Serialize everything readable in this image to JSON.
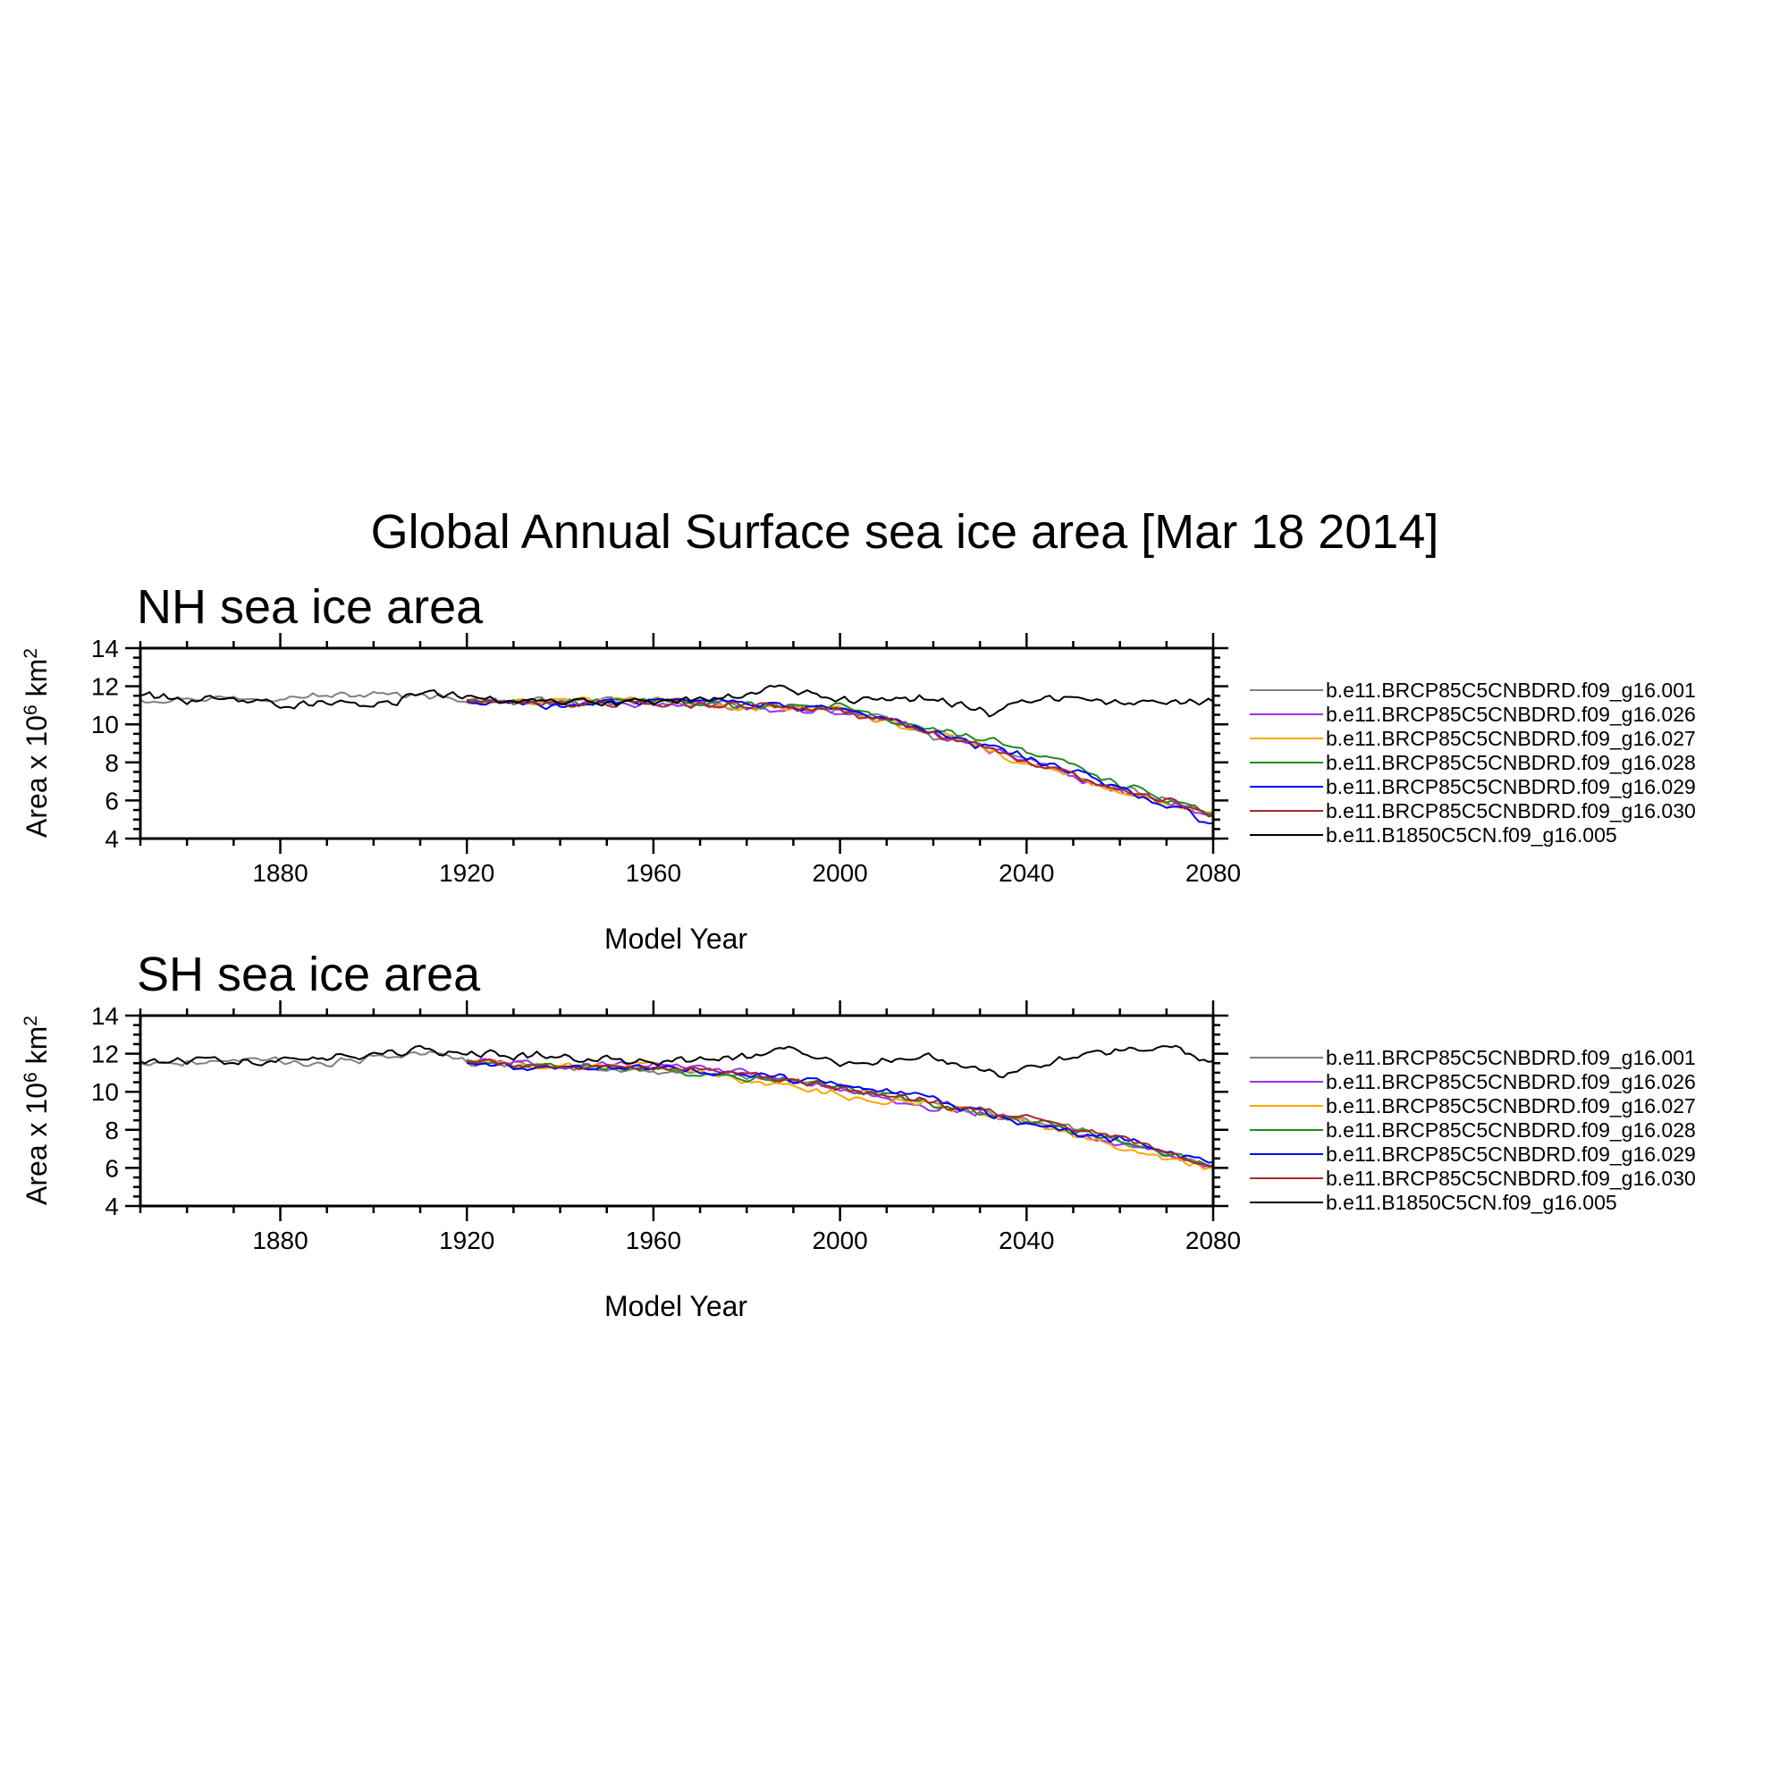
{
  "figure": {
    "title": "Global Annual Surface sea ice area [Mar 18 2014]"
  },
  "chart_data": [
    {
      "type": "line",
      "title": "NH sea ice area",
      "xlabel": "Model Year",
      "ylabel": "Area x 10^6 km^2",
      "ylabel_parts": {
        "base": "Area x 10",
        "exp1": "6",
        "mid": " km",
        "exp2": "2"
      },
      "xlim": [
        1850,
        2080
      ],
      "ylim": [
        4,
        14
      ],
      "xticks": [
        1880,
        1920,
        1960,
        2000,
        2040,
        2080
      ],
      "yticks": [
        4,
        6,
        8,
        10,
        12,
        14
      ],
      "grid": false,
      "legend_position": "right",
      "series": [
        {
          "name": "b.e11.BRCP85C5CNBDRD.f09_g16.001",
          "color": "#808080",
          "x": [
            1850,
            1870,
            1890,
            1910,
            1920,
            1940,
            1960,
            1980,
            2000,
            2010,
            2020,
            2030,
            2040,
            2050,
            2060,
            2070,
            2080
          ],
          "y": [
            11.3,
            11.4,
            11.5,
            11.6,
            11.3,
            11.2,
            11.2,
            11.0,
            10.8,
            10.2,
            9.4,
            8.9,
            8.2,
            7.3,
            6.6,
            6.0,
            5.3
          ]
        },
        {
          "name": "b.e11.BRCP85C5CNBDRD.f09_g16.026",
          "color": "#9b30ff",
          "x": [
            1920,
            1940,
            1960,
            1980,
            2000,
            2010,
            2020,
            2030,
            2040,
            2050,
            2060,
            2070,
            2080
          ],
          "y": [
            11.2,
            11.1,
            11.1,
            10.9,
            10.7,
            10.2,
            9.5,
            8.8,
            8.0,
            7.2,
            6.5,
            5.9,
            5.2
          ]
        },
        {
          "name": "b.e11.BRCP85C5CNBDRD.f09_g16.027",
          "color": "#ffa500",
          "x": [
            1920,
            1940,
            1960,
            1980,
            2000,
            2010,
            2020,
            2030,
            2040,
            2050,
            2060,
            2070,
            2080
          ],
          "y": [
            11.1,
            11.2,
            11.3,
            10.9,
            10.8,
            10.1,
            9.6,
            8.9,
            7.9,
            7.3,
            6.4,
            5.8,
            5.4
          ]
        },
        {
          "name": "b.e11.BRCP85C5CNBDRD.f09_g16.028",
          "color": "#228b22",
          "x": [
            1920,
            1940,
            1960,
            1980,
            2000,
            2010,
            2020,
            2030,
            2040,
            2050,
            2060,
            2070,
            2080
          ],
          "y": [
            11.3,
            11.1,
            11.2,
            11.0,
            10.9,
            10.3,
            9.7,
            9.3,
            8.6,
            7.8,
            6.8,
            6.1,
            5.3
          ]
        },
        {
          "name": "b.e11.BRCP85C5CNBDRD.f09_g16.029",
          "color": "#0000ff",
          "x": [
            1920,
            1940,
            1960,
            1980,
            2000,
            2010,
            2020,
            2030,
            2040,
            2050,
            2060,
            2070,
            2080
          ],
          "y": [
            11.2,
            11.0,
            11.2,
            11.1,
            10.8,
            10.3,
            9.6,
            8.9,
            8.3,
            7.5,
            6.6,
            5.8,
            4.8
          ]
        },
        {
          "name": "b.e11.BRCP85C5CNBDRD.f09_g16.030",
          "color": "#a52a2a",
          "x": [
            1920,
            1940,
            1960,
            1980,
            2000,
            2010,
            2020,
            2030,
            2040,
            2050,
            2060,
            2070,
            2080
          ],
          "y": [
            11.3,
            11.1,
            11.1,
            11.0,
            10.7,
            10.2,
            9.5,
            8.8,
            8.1,
            7.3,
            6.6,
            6.0,
            5.2
          ]
        },
        {
          "name": "b.e11.B1850C5CN.f09_g16.005",
          "color": "#000000",
          "x": [
            1850,
            1860,
            1870,
            1880,
            1890,
            1900,
            1910,
            1920,
            1940,
            1960,
            1980,
            1987,
            2000,
            2020,
            2033,
            2040,
            2060,
            2080
          ],
          "y": [
            11.5,
            11.2,
            11.4,
            11.0,
            11.2,
            10.8,
            11.6,
            11.4,
            11.2,
            11.1,
            11.5,
            12.0,
            11.2,
            11.3,
            10.6,
            11.3,
            11.2,
            11.2
          ]
        }
      ]
    },
    {
      "type": "line",
      "title": "SH sea ice area",
      "xlabel": "Model Year",
      "ylabel": "Area x 10^6 km^2",
      "ylabel_parts": {
        "base": "Area x 10",
        "exp1": "6",
        "mid": " km",
        "exp2": "2"
      },
      "xlim": [
        1850,
        2080
      ],
      "ylim": [
        4,
        14
      ],
      "xticks": [
        1880,
        1920,
        1960,
        2000,
        2040,
        2080
      ],
      "yticks": [
        4,
        6,
        8,
        10,
        12,
        14
      ],
      "grid": false,
      "legend_position": "right",
      "series": [
        {
          "name": "b.e11.BRCP85C5CNBDRD.f09_g16.001",
          "color": "#808080",
          "x": [
            1850,
            1870,
            1890,
            1910,
            1920,
            1940,
            1960,
            1980,
            2000,
            2020,
            2040,
            2060,
            2080
          ],
          "y": [
            11.5,
            11.7,
            11.5,
            12.0,
            11.6,
            11.3,
            11.1,
            10.8,
            10.2,
            9.4,
            8.6,
            7.4,
            6.0
          ]
        },
        {
          "name": "b.e11.BRCP85C5CNBDRD.f09_g16.026",
          "color": "#9b30ff",
          "x": [
            1920,
            1940,
            1960,
            1980,
            2000,
            2020,
            2040,
            2060,
            2080
          ],
          "y": [
            11.7,
            11.4,
            11.5,
            11.0,
            10.1,
            9.2,
            8.5,
            7.3,
            6.1
          ]
        },
        {
          "name": "b.e11.BRCP85C5CNBDRD.f09_g16.027",
          "color": "#ffa500",
          "x": [
            1920,
            1940,
            1960,
            1980,
            2000,
            2020,
            2040,
            2060,
            2080
          ],
          "y": [
            11.5,
            11.3,
            11.4,
            10.6,
            9.8,
            9.3,
            8.4,
            7.1,
            6.0
          ]
        },
        {
          "name": "b.e11.BRCP85C5CNBDRD.f09_g16.028",
          "color": "#228b22",
          "x": [
            1920,
            1940,
            1960,
            1980,
            2000,
            2020,
            2040,
            2060,
            2080
          ],
          "y": [
            11.6,
            11.3,
            11.2,
            10.7,
            10.3,
            9.4,
            8.5,
            7.4,
            6.1
          ]
        },
        {
          "name": "b.e11.BRCP85C5CNBDRD.f09_g16.029",
          "color": "#0000ff",
          "x": [
            1920,
            1940,
            1960,
            1980,
            2000,
            2020,
            2040,
            2060,
            2080
          ],
          "y": [
            11.5,
            11.2,
            11.3,
            10.9,
            10.4,
            9.6,
            8.3,
            7.5,
            6.3
          ]
        },
        {
          "name": "b.e11.BRCP85C5CNBDRD.f09_g16.030",
          "color": "#a52a2a",
          "x": [
            1920,
            1940,
            1960,
            1980,
            2000,
            2020,
            2040,
            2060,
            2080
          ],
          "y": [
            11.6,
            11.3,
            11.3,
            10.9,
            10.2,
            9.4,
            8.6,
            7.6,
            6.1
          ]
        },
        {
          "name": "b.e11.B1850C5CN.f09_g16.005",
          "color": "#000000",
          "x": [
            1850,
            1870,
            1890,
            1910,
            1920,
            1940,
            1960,
            1980,
            1990,
            2000,
            2020,
            2035,
            2045,
            2060,
            2070,
            2080
          ],
          "y": [
            11.6,
            11.6,
            11.7,
            12.2,
            12.0,
            11.8,
            11.6,
            11.8,
            12.3,
            11.4,
            11.8,
            10.9,
            11.5,
            12.2,
            12.5,
            11.6
          ]
        }
      ]
    }
  ]
}
